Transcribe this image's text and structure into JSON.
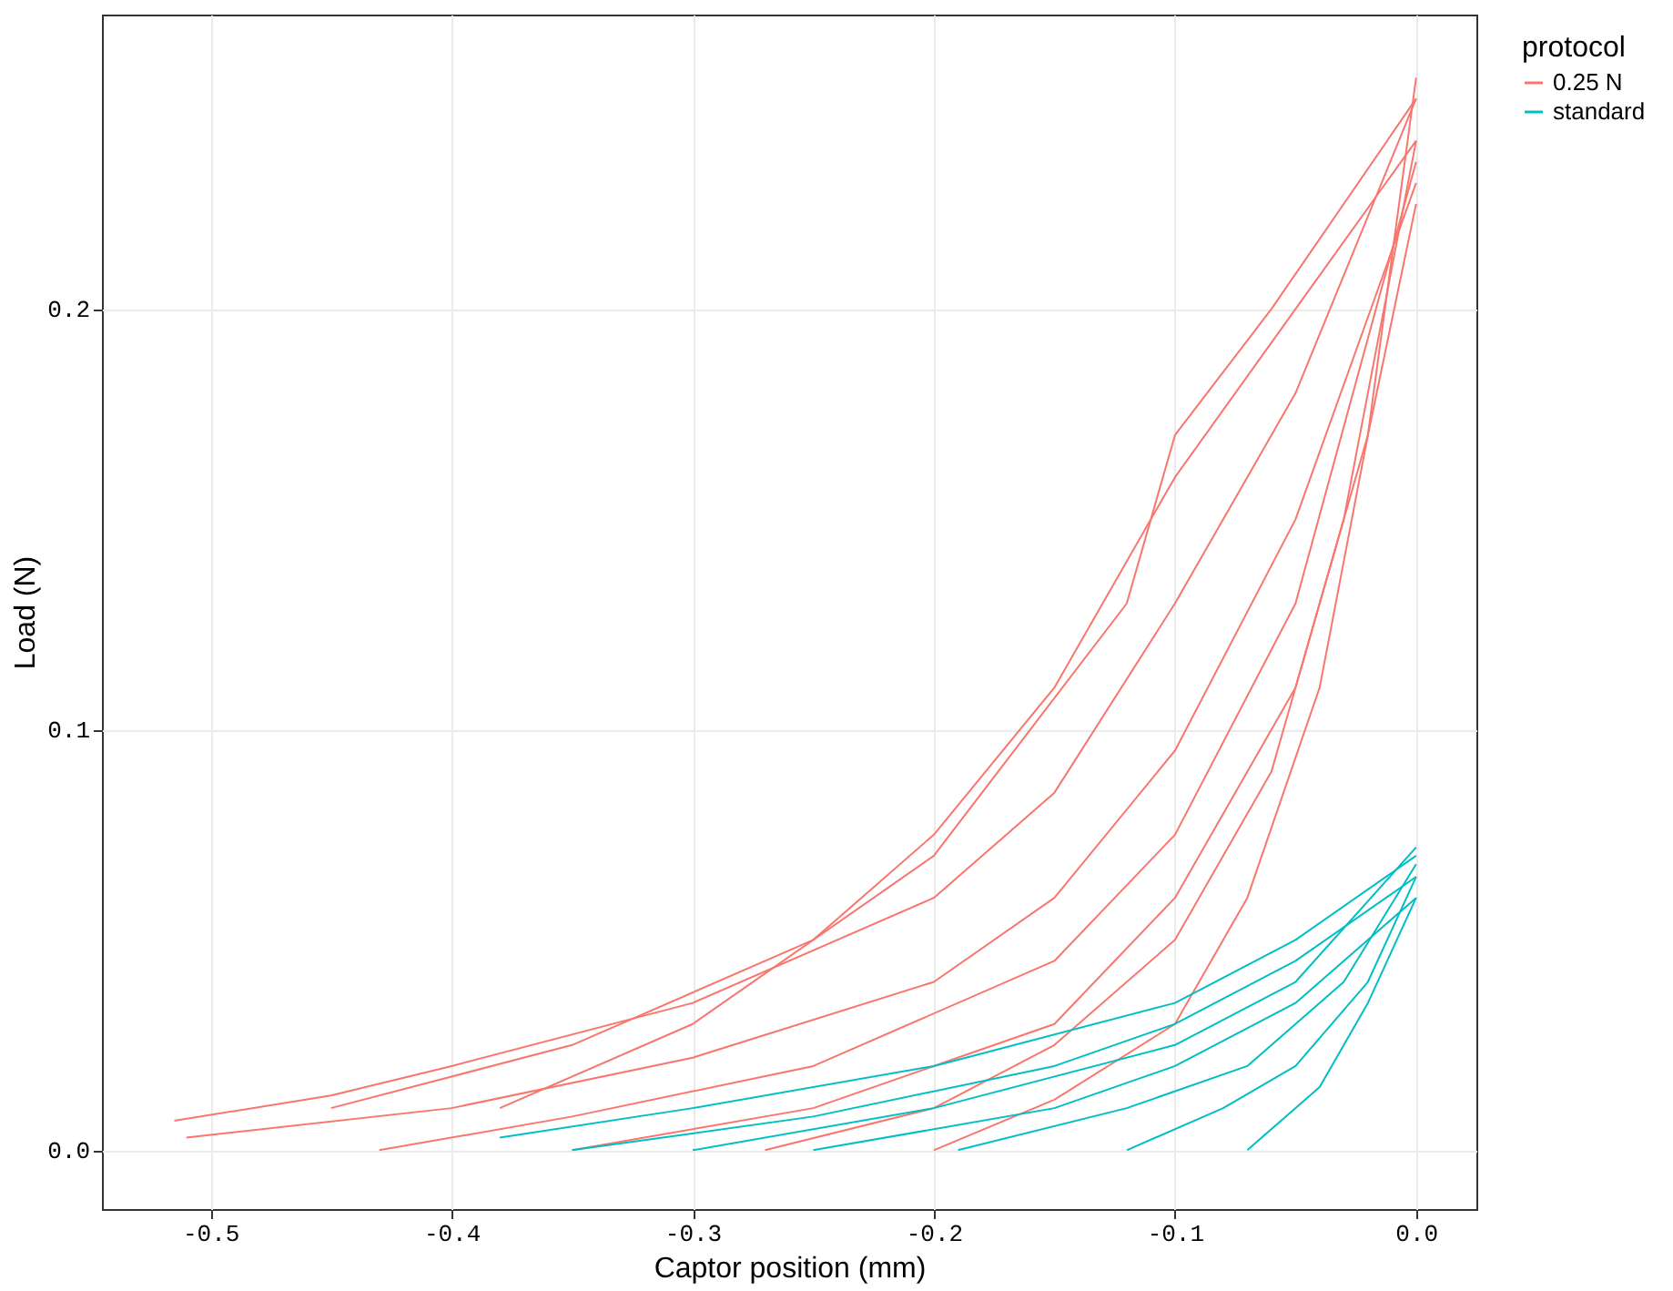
{
  "chart_data": {
    "type": "line",
    "xlabel": "Captor position (mm)",
    "ylabel": "Load (N)",
    "legend_title": "protocol",
    "legend": "right",
    "grid": true,
    "xlim": [
      -0.545,
      0.025
    ],
    "ylim": [
      -0.014,
      0.27
    ],
    "xticks": [
      {
        "value": -0.5,
        "label": "-0.5"
      },
      {
        "value": -0.4,
        "label": "-0.4"
      },
      {
        "value": -0.3,
        "label": "-0.3"
      },
      {
        "value": -0.2,
        "label": "-0.2"
      },
      {
        "value": -0.1,
        "label": "-0.1"
      },
      {
        "value": 0,
        "label": "0.0"
      }
    ],
    "yticks": [
      {
        "value": 0,
        "label": "0.0"
      },
      {
        "value": 0.1,
        "label": "0.1"
      },
      {
        "value": 0.2,
        "label": "0.2"
      }
    ],
    "series": [
      {
        "name": "0.25 N",
        "color": "#f8766d",
        "x": [
          -0.515,
          -0.45,
          -0.4,
          -0.3,
          -0.2,
          -0.15,
          -0.1,
          -0.05,
          0
        ],
        "values": [
          0.007,
          0.013,
          0.02,
          0.035,
          0.06,
          0.085,
          0.13,
          0.18,
          0.25
        ]
      },
      {
        "color": "#f8766d",
        "x": [
          -0.45,
          -0.35,
          -0.25,
          -0.2,
          -0.15,
          -0.1,
          -0.05,
          0
        ],
        "values": [
          0.01,
          0.025,
          0.05,
          0.075,
          0.11,
          0.16,
          0.2,
          0.24
        ]
      },
      {
        "color": "#f8766d",
        "x": [
          -0.51,
          -0.4,
          -0.3,
          -0.2,
          -0.15,
          -0.1,
          -0.05,
          0
        ],
        "values": [
          0.003,
          0.01,
          0.022,
          0.04,
          0.06,
          0.095,
          0.15,
          0.23
        ]
      },
      {
        "color": "#f8766d",
        "x": [
          -0.43,
          -0.35,
          -0.25,
          -0.15,
          -0.1,
          -0.05,
          0
        ],
        "values": [
          0.0,
          0.008,
          0.02,
          0.045,
          0.075,
          0.13,
          0.235
        ]
      },
      {
        "color": "#f8766d",
        "x": [
          -0.35,
          -0.25,
          -0.15,
          -0.1,
          -0.05,
          -0.02,
          0
        ],
        "values": [
          0.0,
          0.01,
          0.03,
          0.06,
          0.11,
          0.17,
          0.225
        ]
      },
      {
        "color": "#f8766d",
        "x": [
          -0.27,
          -0.2,
          -0.15,
          -0.1,
          -0.06,
          -0.03,
          0
        ],
        "values": [
          0.0,
          0.01,
          0.025,
          0.05,
          0.09,
          0.15,
          0.24
        ]
      },
      {
        "color": "#f8766d",
        "x": [
          -0.2,
          -0.15,
          -0.1,
          -0.07,
          -0.04,
          -0.02,
          0
        ],
        "values": [
          0.0,
          0.012,
          0.03,
          0.06,
          0.11,
          0.17,
          0.255
        ]
      },
      {
        "color": "#f8766d",
        "x": [
          -0.38,
          -0.3,
          -0.2,
          -0.12,
          -0.1,
          -0.06,
          0
        ],
        "values": [
          0.01,
          0.03,
          0.07,
          0.13,
          0.17,
          0.2,
          0.25
        ]
      },
      {
        "name": "standard",
        "color": "#00bfc4",
        "x": [
          -0.38,
          -0.3,
          -0.2,
          -0.1,
          -0.05,
          0
        ],
        "values": [
          0.003,
          0.01,
          0.02,
          0.035,
          0.05,
          0.07
        ]
      },
      {
        "color": "#00bfc4",
        "x": [
          -0.35,
          -0.25,
          -0.15,
          -0.1,
          -0.05,
          0
        ],
        "values": [
          0.0,
          0.008,
          0.02,
          0.03,
          0.045,
          0.065
        ]
      },
      {
        "color": "#00bfc4",
        "x": [
          -0.3,
          -0.2,
          -0.1,
          -0.05,
          0
        ],
        "values": [
          0.0,
          0.01,
          0.025,
          0.04,
          0.072
        ]
      },
      {
        "color": "#00bfc4",
        "x": [
          -0.25,
          -0.15,
          -0.1,
          -0.05,
          0
        ],
        "values": [
          0.0,
          0.01,
          0.02,
          0.035,
          0.06
        ]
      },
      {
        "color": "#00bfc4",
        "x": [
          -0.19,
          -0.12,
          -0.07,
          -0.03,
          0
        ],
        "values": [
          0.0,
          0.01,
          0.02,
          0.04,
          0.068
        ]
      },
      {
        "color": "#00bfc4",
        "x": [
          -0.12,
          -0.08,
          -0.05,
          -0.02,
          0
        ],
        "values": [
          0.0,
          0.01,
          0.02,
          0.04,
          0.065
        ]
      },
      {
        "color": "#00bfc4",
        "x": [
          -0.07,
          -0.04,
          -0.02,
          0
        ],
        "values": [
          0.0,
          0.015,
          0.035,
          0.06
        ]
      }
    ]
  }
}
